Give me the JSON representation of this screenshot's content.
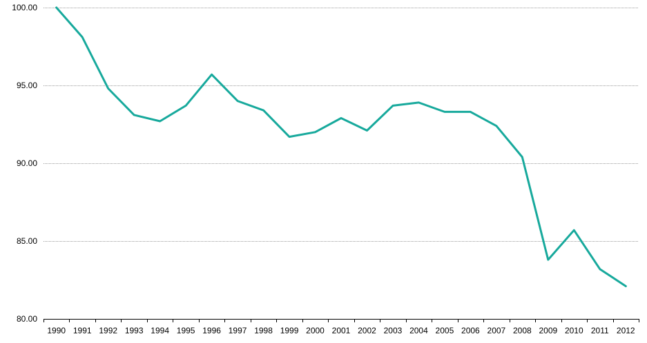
{
  "chart_data": {
    "type": "line",
    "title": "",
    "xlabel": "",
    "ylabel": "",
    "x": [
      "1990",
      "1991",
      "1992",
      "1993",
      "1994",
      "1995",
      "1996",
      "1997",
      "1998",
      "1999",
      "2000",
      "2001",
      "2002",
      "2003",
      "2004",
      "2005",
      "2006",
      "2007",
      "2008",
      "2009",
      "2010",
      "2011",
      "2012"
    ],
    "series": [
      {
        "values": [
          100.0,
          98.1,
          94.8,
          93.1,
          92.7,
          93.7,
          95.7,
          94.0,
          93.4,
          91.7,
          92.0,
          92.9,
          92.1,
          93.7,
          93.9,
          93.3,
          93.3,
          92.4,
          90.4,
          83.8,
          85.7,
          83.2,
          82.1
        ],
        "color": "#17A99C"
      }
    ],
    "ylim": [
      80,
      100
    ],
    "y_ticks": [
      "80.00",
      "85.00",
      "90.00",
      "95.00",
      "100.00"
    ],
    "grid": "horizontal-dotted",
    "legend": "none"
  }
}
